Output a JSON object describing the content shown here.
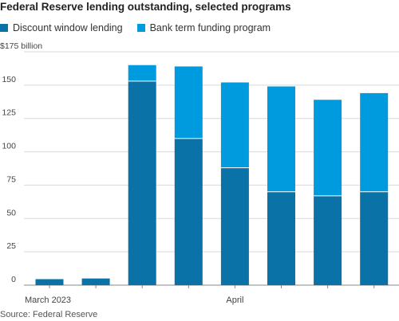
{
  "title": "Federal Reserve lending outstanding, selected programs",
  "source": "Source: Federal Reserve",
  "colors": {
    "discount": "#0b72a8",
    "btfp": "#009ade",
    "grid": "#d9d9d9",
    "axis": "#888888"
  },
  "chart_data": {
    "type": "bar",
    "stacked": true,
    "categories": [
      "1",
      "2",
      "3",
      "4",
      "5",
      "6",
      "7",
      "8"
    ],
    "x_tick_labels": [
      {
        "category_index": 0,
        "label": "March 2023"
      },
      {
        "category_index": 4,
        "label": "April"
      }
    ],
    "series": [
      {
        "name": "Discount window lending",
        "color": "#0b72a8",
        "values": [
          4.5,
          5,
          153,
          110,
          88,
          70,
          67,
          70
        ]
      },
      {
        "name": "Bank term funding program",
        "color": "#009ade",
        "values": [
          0,
          0,
          12,
          54,
          64,
          79,
          72,
          74
        ]
      }
    ],
    "ylim": [
      0,
      175
    ],
    "yticks": [
      "0",
      "25",
      "50",
      "75",
      "100",
      "125",
      "150",
      "$175 billion"
    ],
    "ytick_values": [
      0,
      25,
      50,
      75,
      100,
      125,
      150,
      175
    ],
    "grid": true,
    "legend_position": "top-left"
  }
}
